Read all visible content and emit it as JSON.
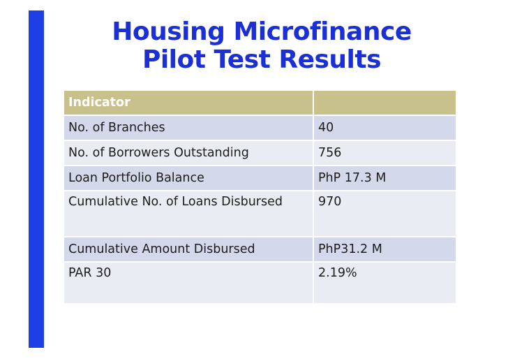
{
  "title": {
    "line1": "Housing Microfinance",
    "line2": "Pilot Test Results"
  },
  "colors": {
    "accent_bar": "#1f3fe6",
    "title": "#1a2fd6",
    "header_fill": "#c9c18b",
    "row_alt_fill": "#d3d9ea",
    "row_plain_fill": "#e9ecf3"
  },
  "table": {
    "headers": [
      "Indicator",
      ""
    ],
    "rows": [
      [
        "No. of Branches",
        "40"
      ],
      [
        "No. of Borrowers Outstanding",
        "756"
      ],
      [
        "Loan Portfolio Balance",
        "PhP 17.3 M"
      ],
      [
        "Cumulative No. of Loans Disbursed",
        "970"
      ],
      [
        "Cumulative Amount Disbursed",
        "PhP31.2 M"
      ],
      [
        "PAR 30",
        "2.19%"
      ]
    ]
  }
}
